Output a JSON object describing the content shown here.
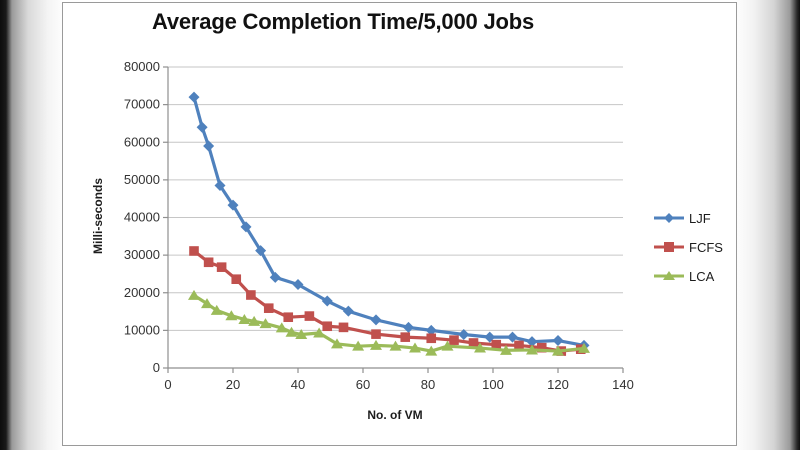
{
  "window": {
    "background": "slide"
  },
  "chart_data": {
    "type": "line",
    "title": "Average Completion Time/5,000 Jobs",
    "xlabel": "No. of VM",
    "ylabel": "Milli-seconds",
    "xlim": [
      0,
      140
    ],
    "ylim": [
      0,
      80000
    ],
    "x_ticks": [
      0,
      20,
      40,
      60,
      80,
      100,
      120,
      140
    ],
    "y_ticks": [
      0,
      10000,
      20000,
      30000,
      40000,
      50000,
      60000,
      70000,
      80000
    ],
    "grid": "horizontal",
    "legend_position": "right",
    "colors": {
      "grid": "#C6C6C6",
      "axis": "#8F8F8F",
      "tick_text": "#333333",
      "title_text": "#111111"
    },
    "series": [
      {
        "name": "LJF",
        "color": "#4F81BD",
        "marker": "diamond",
        "points": [
          [
            8,
            72000
          ],
          [
            10.5,
            64000
          ],
          [
            12.5,
            59000
          ],
          [
            16,
            48500
          ],
          [
            20,
            43300
          ],
          [
            24,
            37500
          ],
          [
            28.5,
            31200
          ],
          [
            33,
            24100
          ],
          [
            40,
            22200
          ],
          [
            49,
            17800
          ],
          [
            55.5,
            15100
          ],
          [
            64,
            12800
          ],
          [
            74,
            10800
          ],
          [
            81,
            10000
          ],
          [
            91,
            8900
          ],
          [
            99,
            8200
          ],
          [
            106,
            8200
          ],
          [
            112,
            7000
          ],
          [
            120,
            7300
          ],
          [
            128,
            6000
          ]
        ]
      },
      {
        "name": "FCFS",
        "color": "#C0504D",
        "marker": "square",
        "points": [
          [
            8,
            31100
          ],
          [
            12.5,
            28100
          ],
          [
            16.5,
            26800
          ],
          [
            21,
            23600
          ],
          [
            25.5,
            19400
          ],
          [
            31,
            15900
          ],
          [
            37,
            13500
          ],
          [
            43.5,
            13800
          ],
          [
            49,
            11100
          ],
          [
            54,
            10800
          ],
          [
            64,
            9000
          ],
          [
            73,
            8200
          ],
          [
            81,
            7900
          ],
          [
            88,
            7400
          ],
          [
            94,
            6650
          ],
          [
            101,
            6200
          ],
          [
            108,
            6000
          ],
          [
            115,
            5400
          ],
          [
            121,
            4500
          ],
          [
            127,
            5000
          ]
        ]
      },
      {
        "name": "LCA",
        "color": "#9BBB59",
        "marker": "triangle",
        "points": [
          [
            8,
            19300
          ],
          [
            12,
            17100
          ],
          [
            15,
            15300
          ],
          [
            19.5,
            13900
          ],
          [
            23.5,
            12900
          ],
          [
            26.5,
            12400
          ],
          [
            30,
            11800
          ],
          [
            35,
            10650
          ],
          [
            38,
            9500
          ],
          [
            41,
            8900
          ],
          [
            46.5,
            9300
          ],
          [
            52,
            6400
          ],
          [
            58.5,
            5800
          ],
          [
            64,
            6000
          ],
          [
            70,
            5800
          ],
          [
            76,
            5300
          ],
          [
            81,
            4500
          ],
          [
            86,
            5800
          ],
          [
            96,
            5300
          ],
          [
            104,
            4700
          ],
          [
            112,
            4800
          ],
          [
            120,
            4500
          ],
          [
            128,
            5200
          ]
        ]
      }
    ]
  }
}
